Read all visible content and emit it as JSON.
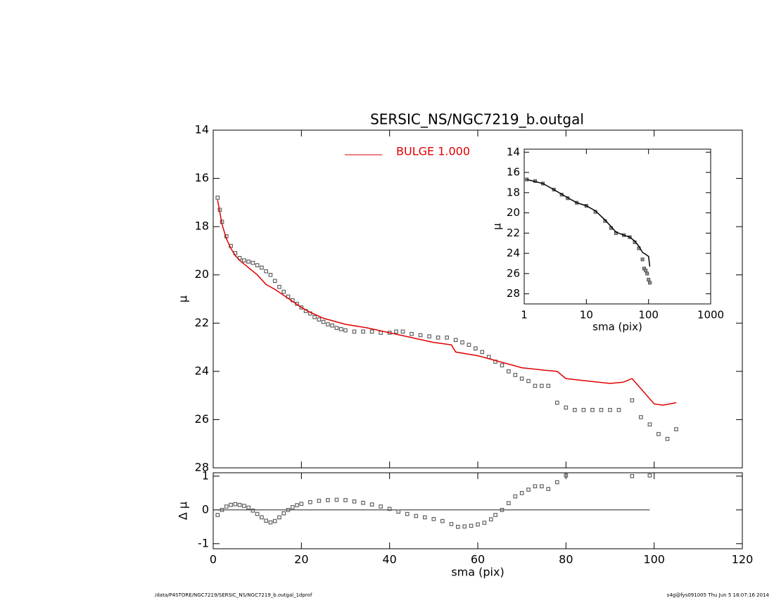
{
  "chart_data": [
    {
      "type": "scatter",
      "title": "SERSIC_NS/NGC7219_b.outgal",
      "ylabel": "μ",
      "xlim": [
        0,
        120
      ],
      "xticks": [
        0,
        20,
        40,
        60,
        80,
        100,
        120
      ],
      "ylim": [
        14,
        28
      ],
      "y_inverted": true,
      "yticks": [
        14,
        16,
        18,
        20,
        22,
        24,
        26,
        28
      ],
      "legend": "top",
      "series": [
        {
          "name": null,
          "style": "markers",
          "color": "#555555",
          "x": [
            1,
            1.5,
            2,
            3,
            4,
            5,
            6,
            7,
            8,
            9,
            10,
            11,
            12,
            13,
            14,
            15,
            16,
            17,
            18,
            19,
            20,
            21,
            22,
            23,
            24,
            25,
            26,
            27,
            28,
            29,
            30,
            32,
            34,
            36,
            38,
            40,
            41.5,
            43,
            45,
            47,
            49,
            51,
            53,
            55,
            56.5,
            58,
            59.5,
            61,
            62.5,
            64,
            65.5,
            67,
            68.5,
            70,
            71.5,
            73,
            74.5,
            76,
            78,
            80,
            82,
            84,
            86,
            88,
            90,
            92,
            95,
            97,
            99,
            101,
            103,
            105
          ],
          "values": [
            16.8,
            17.3,
            17.8,
            18.4,
            18.8,
            19.1,
            19.3,
            19.4,
            19.45,
            19.5,
            19.6,
            19.7,
            19.85,
            20.0,
            20.25,
            20.5,
            20.7,
            20.9,
            21.05,
            21.2,
            21.35,
            21.5,
            21.6,
            21.75,
            21.85,
            21.95,
            22.05,
            22.1,
            22.2,
            22.25,
            22.3,
            22.35,
            22.35,
            22.35,
            22.4,
            22.4,
            22.35,
            22.35,
            22.45,
            22.5,
            22.55,
            22.6,
            22.6,
            22.7,
            22.8,
            22.9,
            23.05,
            23.2,
            23.4,
            23.6,
            23.75,
            24.0,
            24.15,
            24.3,
            24.4,
            24.6,
            24.6,
            24.6,
            25.3,
            25.5,
            25.6,
            25.6,
            25.6,
            25.6,
            25.6,
            25.6,
            25.2,
            25.9,
            26.2,
            26.6,
            26.8,
            26.4
          ]
        },
        {
          "name": "BULGE  1.000",
          "style": "line",
          "color": "#e00000",
          "x": [
            1,
            2,
            3,
            4,
            5,
            6,
            8,
            10,
            12,
            14,
            16,
            18,
            20,
            22,
            25,
            30,
            35,
            40,
            45,
            50,
            54,
            55,
            60,
            65,
            70,
            75,
            78,
            80,
            85,
            90,
            93,
            95,
            100,
            102,
            105
          ],
          "values": [
            16.9,
            17.9,
            18.5,
            18.9,
            19.2,
            19.4,
            19.7,
            20.0,
            20.4,
            20.6,
            20.85,
            21.1,
            21.35,
            21.55,
            21.8,
            22.05,
            22.2,
            22.4,
            22.6,
            22.8,
            22.9,
            23.2,
            23.35,
            23.6,
            23.85,
            23.95,
            24.0,
            24.3,
            24.4,
            24.5,
            24.45,
            24.3,
            25.35,
            25.4,
            25.3
          ]
        }
      ]
    },
    {
      "type": "scatter",
      "xlabel": "sma (pix)",
      "ylabel": "Δ μ",
      "xlim": [
        0,
        120
      ],
      "xticks": [
        0,
        20,
        40,
        60,
        80,
        100,
        120
      ],
      "ylim": [
        -1.15,
        1.1
      ],
      "yticks": [
        -1,
        0,
        1
      ],
      "zero_line": true,
      "series": [
        {
          "name": null,
          "style": "markers",
          "color": "#555555",
          "x": [
            1,
            2,
            3,
            4,
            5,
            6,
            7,
            8,
            9,
            10,
            11,
            12,
            13,
            14,
            15,
            16,
            17,
            18,
            19,
            20,
            22,
            24,
            26,
            28,
            30,
            32,
            34,
            36,
            38,
            40,
            42,
            44,
            46,
            48,
            50,
            52,
            54,
            55.5,
            57,
            58.5,
            60,
            61.5,
            63,
            64,
            65.5,
            67,
            68.5,
            70,
            71.5,
            73,
            74.5,
            76,
            78,
            80,
            95,
            99
          ],
          "values": [
            -0.15,
            0.0,
            0.1,
            0.15,
            0.17,
            0.15,
            0.12,
            0.07,
            -0.02,
            -0.12,
            -0.22,
            -0.32,
            -0.37,
            -0.33,
            -0.22,
            -0.1,
            0.0,
            0.08,
            0.14,
            0.18,
            0.23,
            0.27,
            0.29,
            0.3,
            0.29,
            0.25,
            0.21,
            0.16,
            0.1,
            0.03,
            -0.05,
            -0.12,
            -0.18,
            -0.22,
            -0.27,
            -0.33,
            -0.42,
            -0.5,
            -0.49,
            -0.47,
            -0.43,
            -0.38,
            -0.28,
            -0.15,
            0.0,
            0.2,
            0.4,
            0.5,
            0.6,
            0.7,
            0.7,
            0.62,
            0.82,
            1.02,
            1.0,
            1.02
          ]
        }
      ]
    },
    {
      "type": "scatter",
      "xlabel": "sma (pix)",
      "ylabel": "μ",
      "log_x": true,
      "xlim": [
        1,
        1000
      ],
      "xticks": [
        1,
        10,
        100,
        1000
      ],
      "ylim": [
        13.7,
        29
      ],
      "y_inverted": true,
      "yticks": [
        14,
        16,
        18,
        20,
        22,
        24,
        26,
        28
      ],
      "series": [
        {
          "name": null,
          "style": "markers",
          "color": "#555555",
          "x": [
            1.1,
            1.5,
            2,
            3,
            4,
            5,
            7,
            10,
            14,
            20,
            25,
            30,
            40,
            50,
            60,
            70,
            80,
            85,
            90,
            95,
            100,
            105
          ],
          "values": [
            16.7,
            16.85,
            17.1,
            17.7,
            18.2,
            18.55,
            19.0,
            19.3,
            19.9,
            20.8,
            21.5,
            22.0,
            22.2,
            22.4,
            22.9,
            23.5,
            24.6,
            25.5,
            25.7,
            26.0,
            26.6,
            26.9
          ]
        },
        {
          "name": null,
          "style": "line",
          "color": "#000000",
          "x": [
            1.1,
            2,
            3,
            5,
            7,
            10,
            14,
            20,
            30,
            40,
            50,
            60,
            70,
            80,
            90,
            100,
            105
          ],
          "values": [
            16.7,
            17.1,
            17.7,
            18.5,
            19.0,
            19.3,
            19.8,
            20.7,
            21.9,
            22.2,
            22.4,
            22.8,
            23.3,
            23.9,
            24.1,
            24.3,
            25.3
          ]
        }
      ]
    }
  ],
  "footer": {
    "left": "/data/P4STORE/NGC7219/SERSIC_NS/NGC7219_b.outgal_1dprof",
    "right": "s4g@fys091005  Thu Jun  5 18:07:16 2014"
  }
}
